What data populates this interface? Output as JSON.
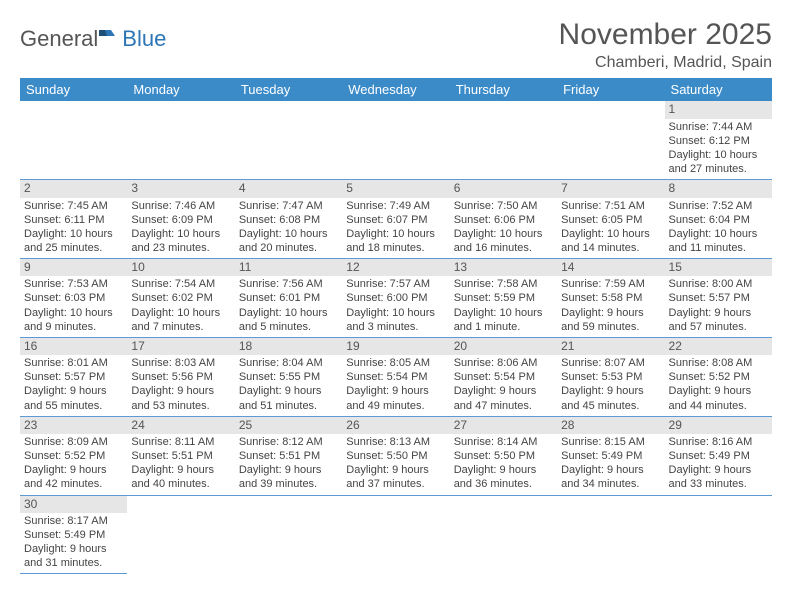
{
  "logo": {
    "part1": "General",
    "part2": "Blue"
  },
  "title": "November 2025",
  "location": "Chamberi, Madrid, Spain",
  "style": {
    "header_bg": "#3b8bc9",
    "header_fg": "#ffffff",
    "daynum_bg": "#e7e6e6",
    "border_color": "#5b9bd5",
    "title_fontsize": 30,
    "location_fontsize": 16,
    "dayheader_fontsize": 13,
    "body_fontsize": 11
  },
  "day_headers": [
    "Sunday",
    "Monday",
    "Tuesday",
    "Wednesday",
    "Thursday",
    "Friday",
    "Saturday"
  ],
  "weeks": [
    [
      null,
      null,
      null,
      null,
      null,
      null,
      {
        "n": "1",
        "sr": "Sunrise: 7:44 AM",
        "ss": "Sunset: 6:12 PM",
        "dl": "Daylight: 10 hours and 27 minutes."
      }
    ],
    [
      {
        "n": "2",
        "sr": "Sunrise: 7:45 AM",
        "ss": "Sunset: 6:11 PM",
        "dl": "Daylight: 10 hours and 25 minutes."
      },
      {
        "n": "3",
        "sr": "Sunrise: 7:46 AM",
        "ss": "Sunset: 6:09 PM",
        "dl": "Daylight: 10 hours and 23 minutes."
      },
      {
        "n": "4",
        "sr": "Sunrise: 7:47 AM",
        "ss": "Sunset: 6:08 PM",
        "dl": "Daylight: 10 hours and 20 minutes."
      },
      {
        "n": "5",
        "sr": "Sunrise: 7:49 AM",
        "ss": "Sunset: 6:07 PM",
        "dl": "Daylight: 10 hours and 18 minutes."
      },
      {
        "n": "6",
        "sr": "Sunrise: 7:50 AM",
        "ss": "Sunset: 6:06 PM",
        "dl": "Daylight: 10 hours and 16 minutes."
      },
      {
        "n": "7",
        "sr": "Sunrise: 7:51 AM",
        "ss": "Sunset: 6:05 PM",
        "dl": "Daylight: 10 hours and 14 minutes."
      },
      {
        "n": "8",
        "sr": "Sunrise: 7:52 AM",
        "ss": "Sunset: 6:04 PM",
        "dl": "Daylight: 10 hours and 11 minutes."
      }
    ],
    [
      {
        "n": "9",
        "sr": "Sunrise: 7:53 AM",
        "ss": "Sunset: 6:03 PM",
        "dl": "Daylight: 10 hours and 9 minutes."
      },
      {
        "n": "10",
        "sr": "Sunrise: 7:54 AM",
        "ss": "Sunset: 6:02 PM",
        "dl": "Daylight: 10 hours and 7 minutes."
      },
      {
        "n": "11",
        "sr": "Sunrise: 7:56 AM",
        "ss": "Sunset: 6:01 PM",
        "dl": "Daylight: 10 hours and 5 minutes."
      },
      {
        "n": "12",
        "sr": "Sunrise: 7:57 AM",
        "ss": "Sunset: 6:00 PM",
        "dl": "Daylight: 10 hours and 3 minutes."
      },
      {
        "n": "13",
        "sr": "Sunrise: 7:58 AM",
        "ss": "Sunset: 5:59 PM",
        "dl": "Daylight: 10 hours and 1 minute."
      },
      {
        "n": "14",
        "sr": "Sunrise: 7:59 AM",
        "ss": "Sunset: 5:58 PM",
        "dl": "Daylight: 9 hours and 59 minutes."
      },
      {
        "n": "15",
        "sr": "Sunrise: 8:00 AM",
        "ss": "Sunset: 5:57 PM",
        "dl": "Daylight: 9 hours and 57 minutes."
      }
    ],
    [
      {
        "n": "16",
        "sr": "Sunrise: 8:01 AM",
        "ss": "Sunset: 5:57 PM",
        "dl": "Daylight: 9 hours and 55 minutes."
      },
      {
        "n": "17",
        "sr": "Sunrise: 8:03 AM",
        "ss": "Sunset: 5:56 PM",
        "dl": "Daylight: 9 hours and 53 minutes."
      },
      {
        "n": "18",
        "sr": "Sunrise: 8:04 AM",
        "ss": "Sunset: 5:55 PM",
        "dl": "Daylight: 9 hours and 51 minutes."
      },
      {
        "n": "19",
        "sr": "Sunrise: 8:05 AM",
        "ss": "Sunset: 5:54 PM",
        "dl": "Daylight: 9 hours and 49 minutes."
      },
      {
        "n": "20",
        "sr": "Sunrise: 8:06 AM",
        "ss": "Sunset: 5:54 PM",
        "dl": "Daylight: 9 hours and 47 minutes."
      },
      {
        "n": "21",
        "sr": "Sunrise: 8:07 AM",
        "ss": "Sunset: 5:53 PM",
        "dl": "Daylight: 9 hours and 45 minutes."
      },
      {
        "n": "22",
        "sr": "Sunrise: 8:08 AM",
        "ss": "Sunset: 5:52 PM",
        "dl": "Daylight: 9 hours and 44 minutes."
      }
    ],
    [
      {
        "n": "23",
        "sr": "Sunrise: 8:09 AM",
        "ss": "Sunset: 5:52 PM",
        "dl": "Daylight: 9 hours and 42 minutes."
      },
      {
        "n": "24",
        "sr": "Sunrise: 8:11 AM",
        "ss": "Sunset: 5:51 PM",
        "dl": "Daylight: 9 hours and 40 minutes."
      },
      {
        "n": "25",
        "sr": "Sunrise: 8:12 AM",
        "ss": "Sunset: 5:51 PM",
        "dl": "Daylight: 9 hours and 39 minutes."
      },
      {
        "n": "26",
        "sr": "Sunrise: 8:13 AM",
        "ss": "Sunset: 5:50 PM",
        "dl": "Daylight: 9 hours and 37 minutes."
      },
      {
        "n": "27",
        "sr": "Sunrise: 8:14 AM",
        "ss": "Sunset: 5:50 PM",
        "dl": "Daylight: 9 hours and 36 minutes."
      },
      {
        "n": "28",
        "sr": "Sunrise: 8:15 AM",
        "ss": "Sunset: 5:49 PM",
        "dl": "Daylight: 9 hours and 34 minutes."
      },
      {
        "n": "29",
        "sr": "Sunrise: 8:16 AM",
        "ss": "Sunset: 5:49 PM",
        "dl": "Daylight: 9 hours and 33 minutes."
      }
    ],
    [
      {
        "n": "30",
        "sr": "Sunrise: 8:17 AM",
        "ss": "Sunset: 5:49 PM",
        "dl": "Daylight: 9 hours and 31 minutes."
      },
      null,
      null,
      null,
      null,
      null,
      null
    ]
  ]
}
